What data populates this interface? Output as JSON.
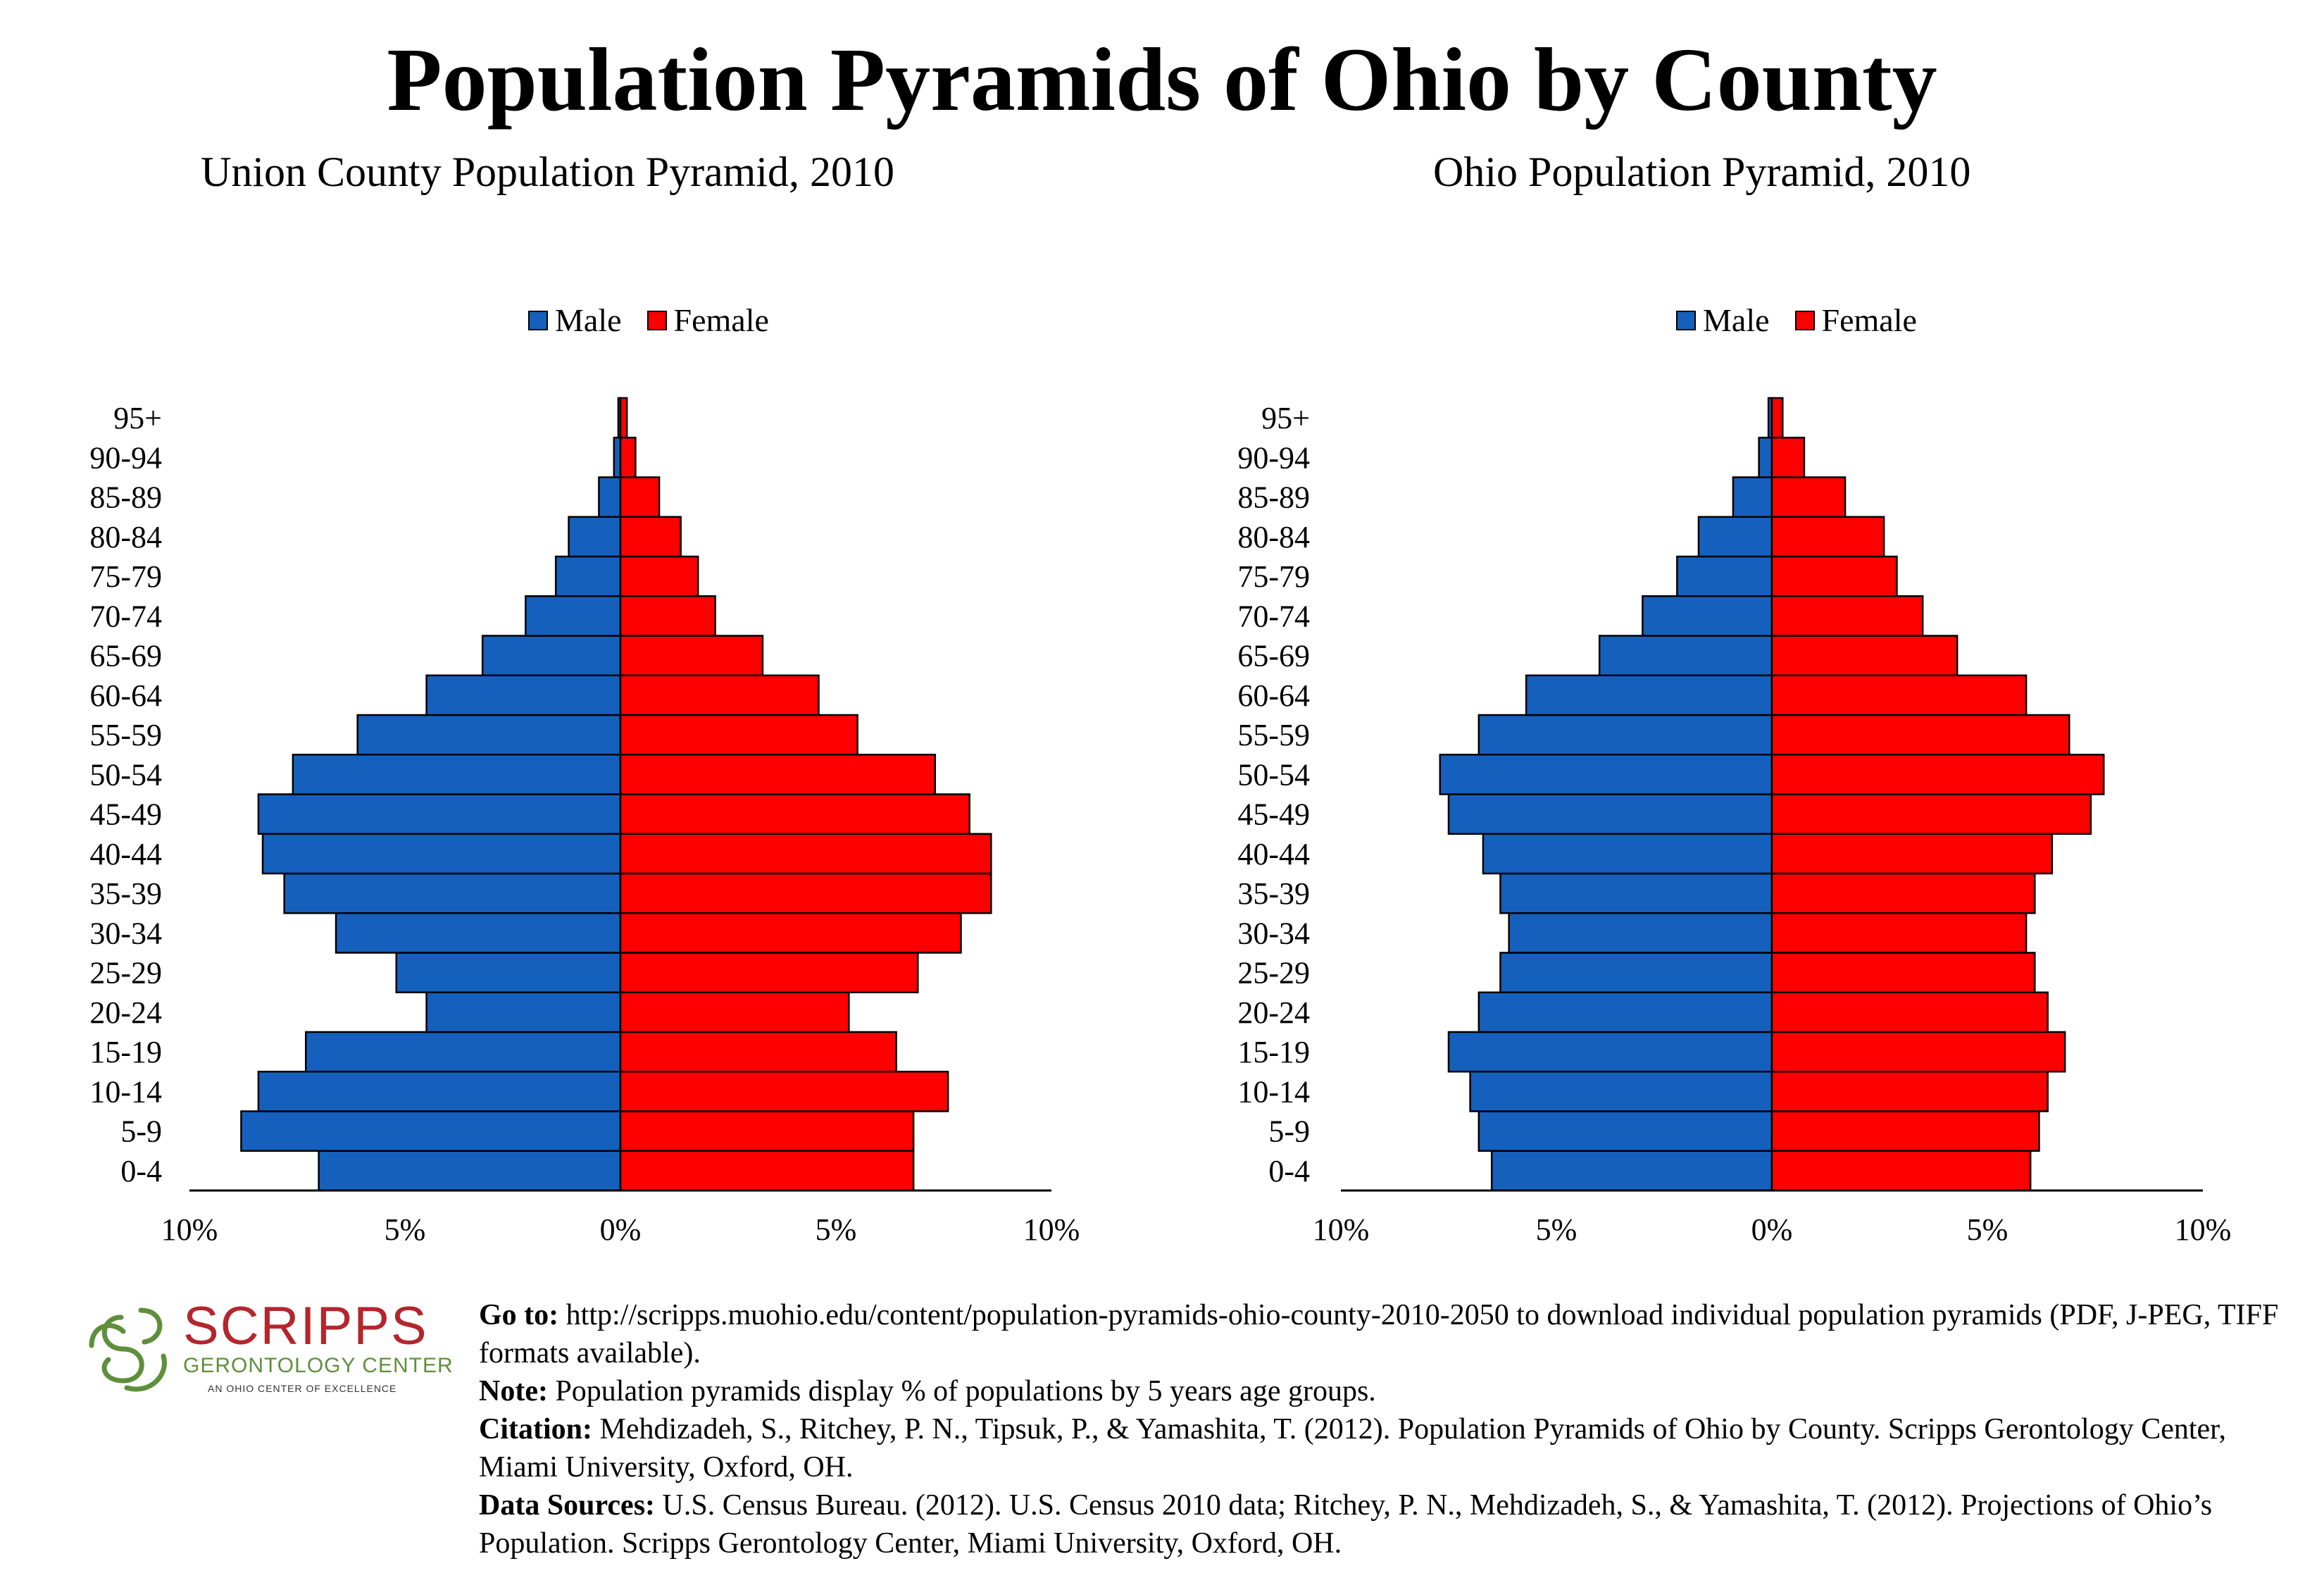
{
  "title": "Population Pyramids of Ohio by County",
  "colors": {
    "male": "#1560BD",
    "female": "#FF0000"
  },
  "chart_data": [
    {
      "type": "bar",
      "title": "Union County Population Pyramid, 2010",
      "legend": [
        "Male",
        "Female"
      ],
      "legend_position": "top",
      "categories": [
        "0-4",
        "5-9",
        "10-14",
        "15-19",
        "20-24",
        "25-29",
        "30-34",
        "35-39",
        "40-44",
        "45-49",
        "50-54",
        "55-59",
        "60-64",
        "65-69",
        "70-74",
        "75-79",
        "80-84",
        "85-89",
        "90-94",
        "95+"
      ],
      "series": [
        {
          "name": "Male",
          "values": [
            7.0,
            8.8,
            8.4,
            7.3,
            4.5,
            5.2,
            6.6,
            7.8,
            8.3,
            8.4,
            7.6,
            6.1,
            4.5,
            3.2,
            2.2,
            1.5,
            1.2,
            0.5,
            0.15,
            0.05
          ]
        },
        {
          "name": "Female",
          "values": [
            6.8,
            6.8,
            7.6,
            6.4,
            5.3,
            6.9,
            7.9,
            8.6,
            8.6,
            8.1,
            7.3,
            5.5,
            4.6,
            3.3,
            2.2,
            1.8,
            1.4,
            0.9,
            0.35,
            0.15
          ]
        }
      ],
      "x_ticks": [
        "10%",
        "5%",
        "0%",
        "5%",
        "10%"
      ],
      "xlim": [
        -10,
        10
      ]
    },
    {
      "type": "bar",
      "title": "Ohio Population Pyramid, 2010",
      "legend": [
        "Male",
        "Female"
      ],
      "legend_position": "top",
      "categories": [
        "0-4",
        "5-9",
        "10-14",
        "15-19",
        "20-24",
        "25-29",
        "30-34",
        "35-39",
        "40-44",
        "45-49",
        "50-54",
        "55-59",
        "60-64",
        "65-69",
        "70-74",
        "75-79",
        "80-84",
        "85-89",
        "90-94",
        "95+"
      ],
      "series": [
        {
          "name": "Male",
          "values": [
            6.5,
            6.8,
            7.0,
            7.5,
            6.8,
            6.3,
            6.1,
            6.3,
            6.7,
            7.5,
            7.7,
            6.8,
            5.7,
            4.0,
            3.0,
            2.2,
            1.7,
            0.9,
            0.3,
            0.08
          ]
        },
        {
          "name": "Female",
          "values": [
            6.0,
            6.2,
            6.4,
            6.8,
            6.4,
            6.1,
            5.9,
            6.1,
            6.5,
            7.4,
            7.7,
            6.9,
            5.9,
            4.3,
            3.5,
            2.9,
            2.6,
            1.7,
            0.75,
            0.25
          ]
        }
      ],
      "x_ticks": [
        "10%",
        "5%",
        "0%",
        "5%",
        "10%"
      ],
      "xlim": [
        -10,
        10
      ]
    }
  ],
  "logo": {
    "name": "SCRIPPS",
    "line1": "GERONTOLOGY CENTER",
    "line2": "AN OHIO CENTER OF EXCELLENCE"
  },
  "footer": {
    "goto_label": "Go to:",
    "goto_text": " http://scripps.muohio.edu/content/population-pyramids-ohio-county-2010-2050 to download individual population pyramids (PDF, J-PEG, TIFF formats available).",
    "note_label": "Note:",
    "note_text": " Population pyramids display % of populations by 5 years age groups.",
    "citation_label": "Citation:",
    "citation_text": " Mehdizadeh, S., Ritchey, P. N., Tipsuk, P., & Yamashita, T. (2012). Population Pyramids of Ohio by County. Scripps Gerontology Center, Miami University, Oxford, OH.",
    "sources_label": "Data Sources:",
    "sources_text": " U.S. Census Bureau. (2012). U.S. Census 2010 data; Ritchey, P. N., Mehdizadeh, S., & Yamashita, T. (2012). Projections of Ohio’s Population. Scripps Gerontology Center, Miami University, Oxford, OH."
  }
}
